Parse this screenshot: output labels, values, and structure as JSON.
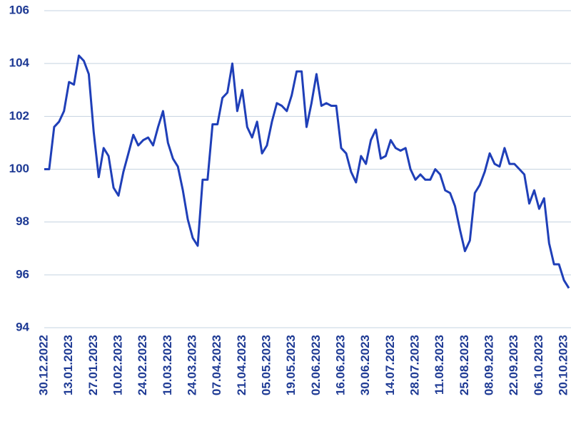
{
  "chart_data": {
    "type": "line",
    "categories": [
      "30.12.2022",
      null,
      null,
      null,
      null,
      "13.01.2023",
      null,
      null,
      null,
      null,
      "27.01.2023",
      null,
      null,
      null,
      null,
      "10.02.2023",
      null,
      null,
      null,
      null,
      "24.02.2023",
      null,
      null,
      null,
      null,
      "10.03.2023",
      null,
      null,
      null,
      null,
      "24.03.2023",
      null,
      null,
      null,
      null,
      "07.04.2023",
      null,
      null,
      null,
      null,
      "21.04.2023",
      null,
      null,
      null,
      null,
      "05.05.2023",
      null,
      null,
      null,
      null,
      "19.05.2023",
      null,
      null,
      null,
      null,
      "02.06.2023",
      null,
      null,
      null,
      null,
      "16.06.2023",
      null,
      null,
      null,
      null,
      "30.06.2023",
      null,
      null,
      null,
      null,
      "14.07.2023",
      null,
      null,
      null,
      null,
      "28.07.2023",
      null,
      null,
      null,
      null,
      "11.08.2023",
      null,
      null,
      null,
      null,
      "25.08.2023",
      null,
      null,
      null,
      null,
      "08.09.2023",
      null,
      null,
      null,
      null,
      "22.09.2023",
      null,
      null,
      null,
      null,
      "06.10.2023",
      null,
      null,
      null,
      null,
      "20.10.2023",
      null
    ],
    "values": [
      100.0,
      100.0,
      101.6,
      101.8,
      102.2,
      103.3,
      103.2,
      104.3,
      104.1,
      103.6,
      101.4,
      99.7,
      100.8,
      100.5,
      99.3,
      99.0,
      99.9,
      100.6,
      101.3,
      100.9,
      101.1,
      101.2,
      100.9,
      101.6,
      102.2,
      101.0,
      100.4,
      100.1,
      99.2,
      98.1,
      97.4,
      97.1,
      99.6,
      99.6,
      101.7,
      101.7,
      102.7,
      102.9,
      104.0,
      102.2,
      103.0,
      101.6,
      101.2,
      101.8,
      100.6,
      100.9,
      101.8,
      102.5,
      102.4,
      102.2,
      102.8,
      103.7,
      103.7,
      101.6,
      102.5,
      103.6,
      102.4,
      102.5,
      102.4,
      102.4,
      100.8,
      100.6,
      99.9,
      99.5,
      100.5,
      100.2,
      101.1,
      101.5,
      100.4,
      100.5,
      101.1,
      100.8,
      100.7,
      100.8,
      100.0,
      99.6,
      99.8,
      99.6,
      99.6,
      100.0,
      99.8,
      99.2,
      99.1,
      98.6,
      97.7,
      96.9,
      97.3,
      99.1,
      99.4,
      99.9,
      100.6,
      100.2,
      100.1,
      100.8,
      100.2,
      100.2,
      100.0,
      99.8,
      98.7,
      99.2,
      98.5,
      98.9,
      97.2,
      96.4,
      96.4,
      95.8,
      95.5
    ],
    "color": "#1f3fb8",
    "ylim": [
      94,
      106
    ],
    "yticks": [
      94,
      96,
      98,
      100,
      102,
      104,
      106
    ],
    "grid": true
  }
}
